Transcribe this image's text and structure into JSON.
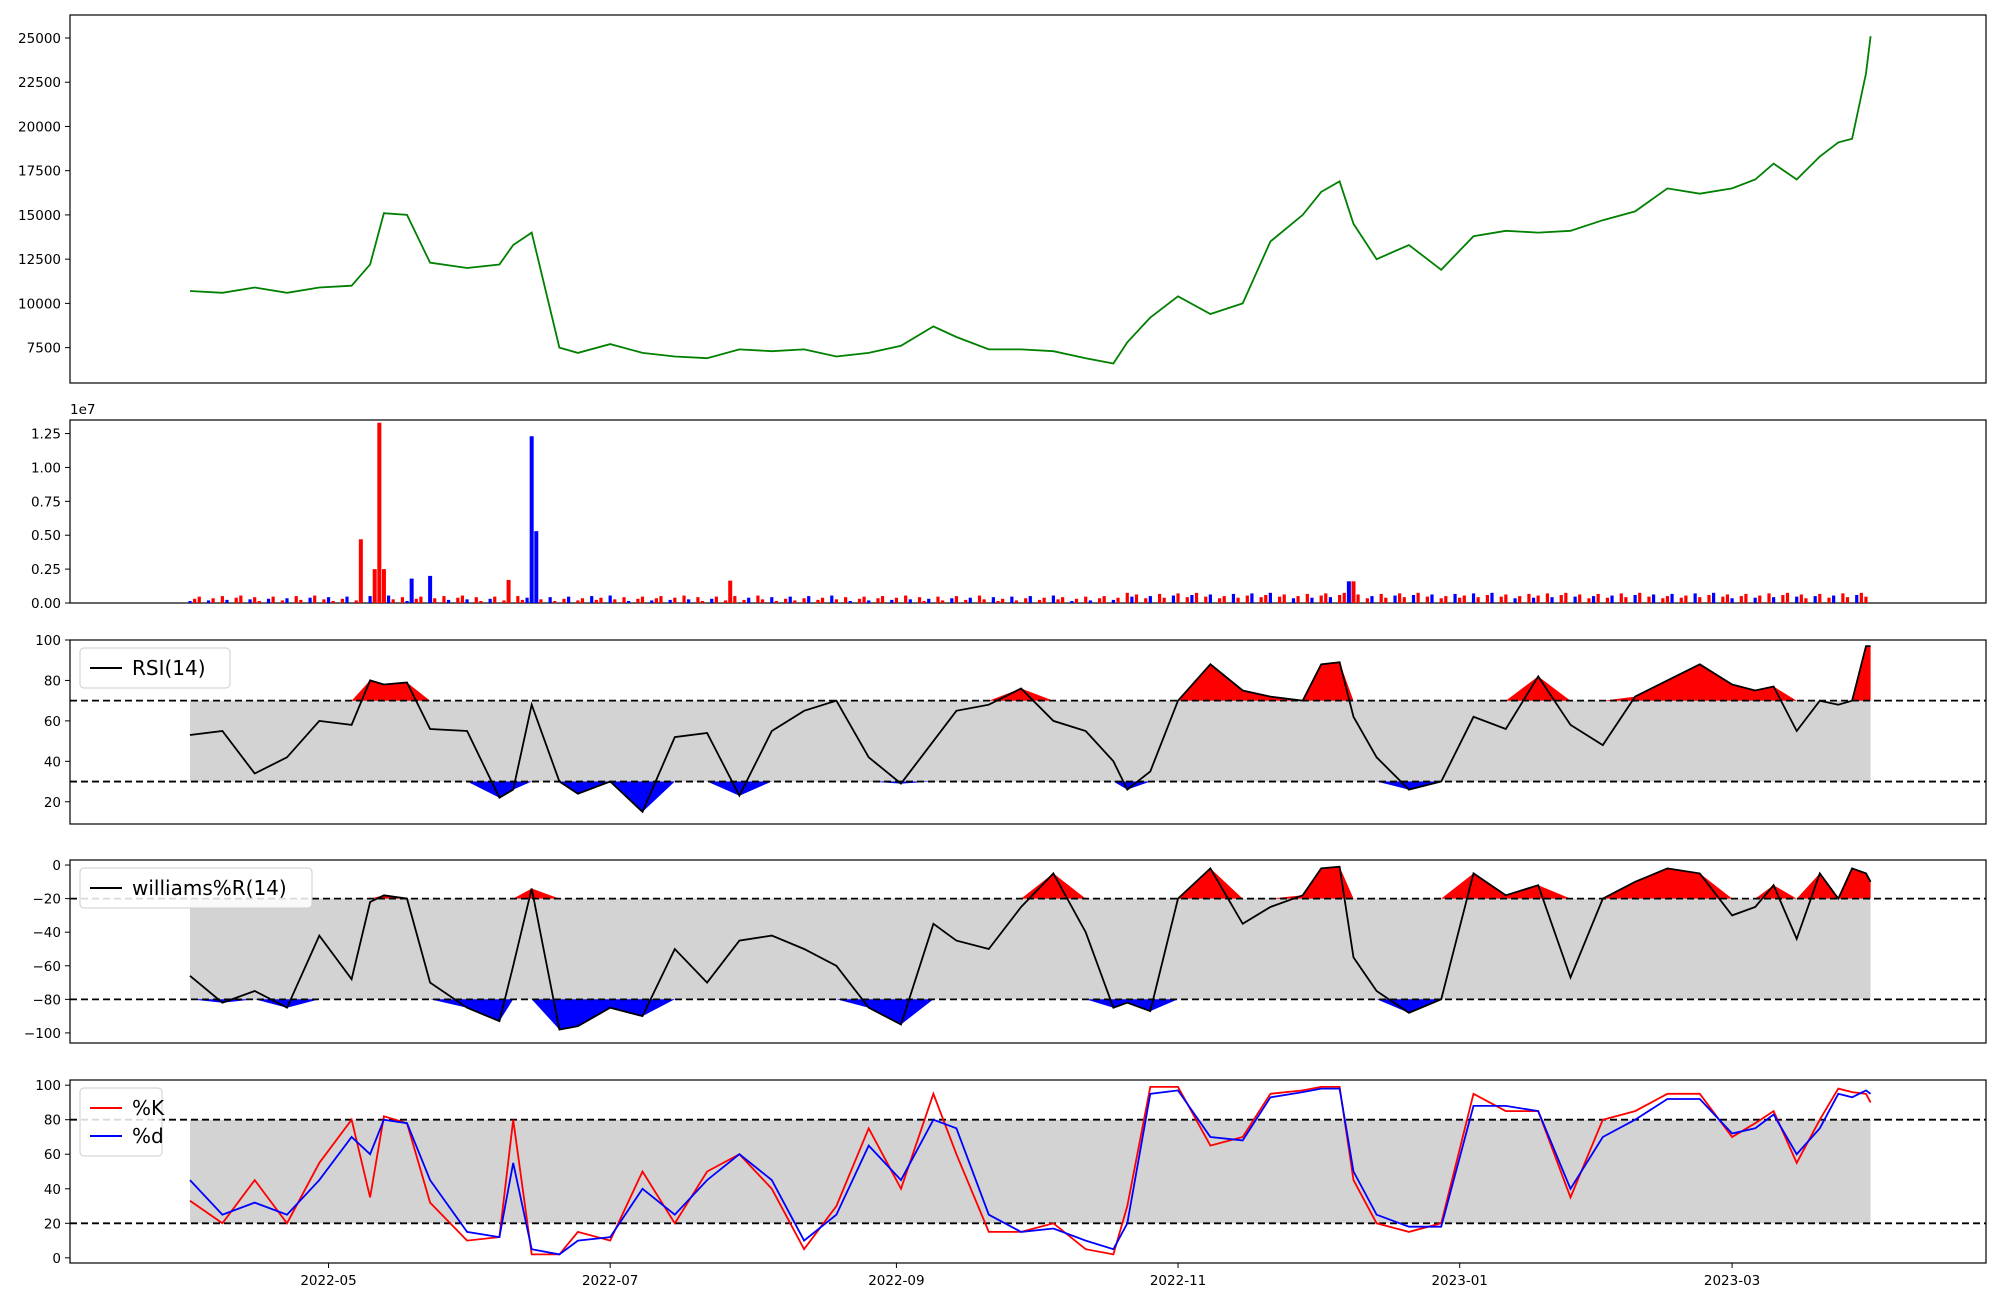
{
  "chart_data": [
    {
      "type": "line",
      "panel": "price",
      "color": "#008000",
      "ylim": [
        5500,
        26300
      ],
      "yticks": [
        "7500",
        "10000",
        "12500",
        "15000",
        "17500",
        "20000",
        "22500",
        "25000"
      ],
      "x": [
        "2022-04-01",
        "2022-04-08",
        "2022-04-15",
        "2022-04-22",
        "2022-04-29",
        "2022-05-06",
        "2022-05-10",
        "2022-05-13",
        "2022-05-18",
        "2022-05-23",
        "2022-05-31",
        "2022-06-07",
        "2022-06-10",
        "2022-06-14",
        "2022-06-20",
        "2022-06-24",
        "2022-07-01",
        "2022-07-08",
        "2022-07-15",
        "2022-07-22",
        "2022-07-29",
        "2022-08-05",
        "2022-08-12",
        "2022-08-19",
        "2022-08-26",
        "2022-09-02",
        "2022-09-09",
        "2022-09-14",
        "2022-09-21",
        "2022-09-28",
        "2022-10-05",
        "2022-10-12",
        "2022-10-18",
        "2022-10-21",
        "2022-10-26",
        "2022-11-01",
        "2022-11-08",
        "2022-11-15",
        "2022-11-21",
        "2022-11-28",
        "2022-12-02",
        "2022-12-06",
        "2022-12-09",
        "2022-12-14",
        "2022-12-21",
        "2022-12-28",
        "2023-01-04",
        "2023-01-11",
        "2023-01-18",
        "2023-01-25",
        "2023-02-01",
        "2023-02-08",
        "2023-02-15",
        "2023-02-22",
        "2023-03-01",
        "2023-03-06",
        "2023-03-10",
        "2023-03-15",
        "2023-03-20",
        "2023-03-24",
        "2023-03-27",
        "2023-03-30",
        "2023-03-31"
      ],
      "values": [
        10700,
        10600,
        10900,
        10600,
        10900,
        11000,
        12200,
        15100,
        15000,
        12300,
        12000,
        12200,
        13300,
        14000,
        7500,
        7200,
        7700,
        7200,
        7000,
        6900,
        7400,
        7300,
        7400,
        7000,
        7200,
        7600,
        8700,
        8100,
        7400,
        7400,
        7300,
        6900,
        6600,
        7800,
        9200,
        10400,
        9400,
        10000,
        13500,
        15000,
        16300,
        16900,
        14500,
        12500,
        13300,
        11900,
        13800,
        14100,
        14000,
        14100,
        14700,
        15200,
        16500,
        16200,
        16500,
        17000,
        17900,
        17000,
        18300,
        19100,
        19300,
        23000,
        25100
      ]
    },
    {
      "type": "bar",
      "panel": "volume",
      "offset_text": "1e7",
      "ylim": [
        0,
        13500000.0
      ],
      "yticks": [
        "0.00",
        "0.25",
        "0.50",
        "0.75",
        "1.00",
        "1.25"
      ],
      "up_color": "#ff0000",
      "down_color": "#0000ff",
      "spikes": [
        {
          "x": "2022-05-08",
          "value": 4700000,
          "color": "red"
        },
        {
          "x": "2022-05-11",
          "value": 2500000,
          "color": "red"
        },
        {
          "x": "2022-05-12",
          "value": 13300000,
          "color": "red"
        },
        {
          "x": "2022-05-13",
          "value": 2500000,
          "color": "red"
        },
        {
          "x": "2022-05-19",
          "value": 1800000,
          "color": "blue"
        },
        {
          "x": "2022-05-23",
          "value": 2000000,
          "color": "blue"
        },
        {
          "x": "2022-06-09",
          "value": 1700000,
          "color": "red"
        },
        {
          "x": "2022-06-14",
          "value": 12300000,
          "color": "blue"
        },
        {
          "x": "2022-06-15",
          "value": 5300000,
          "color": "blue"
        },
        {
          "x": "2022-07-27",
          "value": 1650000,
          "color": "red"
        },
        {
          "x": "2022-12-08",
          "value": 1600000,
          "color": "blue"
        },
        {
          "x": "2022-12-09",
          "value": 1600000,
          "color": "red"
        }
      ]
    },
    {
      "type": "line",
      "panel": "rsi",
      "legend": "RSI(14)",
      "ylim": [
        9,
        100
      ],
      "yticks": [
        "20",
        "40",
        "60",
        "80",
        "100"
      ],
      "upper": 70,
      "lower": 30,
      "fill_colors": {
        "band": "#d3d3d3",
        "over": "#ff0000",
        "under": "#0000ff"
      },
      "x": [
        "2022-04-01",
        "2022-04-08",
        "2022-04-15",
        "2022-04-22",
        "2022-04-29",
        "2022-05-06",
        "2022-05-10",
        "2022-05-13",
        "2022-05-18",
        "2022-05-23",
        "2022-05-31",
        "2022-06-07",
        "2022-06-10",
        "2022-06-14",
        "2022-06-20",
        "2022-06-24",
        "2022-07-01",
        "2022-07-08",
        "2022-07-15",
        "2022-07-22",
        "2022-07-29",
        "2022-08-05",
        "2022-08-12",
        "2022-08-19",
        "2022-08-26",
        "2022-09-02",
        "2022-09-09",
        "2022-09-14",
        "2022-09-21",
        "2022-09-28",
        "2022-10-05",
        "2022-10-12",
        "2022-10-18",
        "2022-10-21",
        "2022-10-26",
        "2022-11-01",
        "2022-11-08",
        "2022-11-15",
        "2022-11-21",
        "2022-11-28",
        "2022-12-02",
        "2022-12-06",
        "2022-12-09",
        "2022-12-14",
        "2022-12-21",
        "2022-12-28",
        "2023-01-04",
        "2023-01-11",
        "2023-01-18",
        "2023-01-25",
        "2023-02-01",
        "2023-02-08",
        "2023-02-15",
        "2023-02-22",
        "2023-03-01",
        "2023-03-06",
        "2023-03-10",
        "2023-03-15",
        "2023-03-20",
        "2023-03-24",
        "2023-03-27",
        "2023-03-30",
        "2023-03-31"
      ],
      "values": [
        53,
        55,
        34,
        42,
        60,
        58,
        80,
        78,
        79,
        56,
        55,
        22,
        26,
        68,
        30,
        24,
        30,
        15,
        52,
        54,
        23,
        55,
        65,
        70,
        42,
        29,
        50,
        65,
        68,
        76,
        60,
        55,
        40,
        26,
        35,
        70,
        88,
        75,
        72,
        70,
        88,
        89,
        62,
        42,
        26,
        30,
        62,
        56,
        82,
        58,
        48,
        72,
        80,
        88,
        78,
        75,
        77,
        55,
        70,
        68,
        70,
        97,
        97
      ]
    },
    {
      "type": "line",
      "panel": "williams",
      "legend": "williams%R(14)",
      "ylim": [
        -106,
        3
      ],
      "yticks": [
        "0",
        "−20",
        "−40",
        "−60",
        "−80",
        "−100"
      ],
      "upper": -20,
      "lower": -80,
      "x": [
        "2022-04-01",
        "2022-04-08",
        "2022-04-15",
        "2022-04-22",
        "2022-04-29",
        "2022-05-06",
        "2022-05-10",
        "2022-05-13",
        "2022-05-18",
        "2022-05-23",
        "2022-05-31",
        "2022-06-07",
        "2022-06-10",
        "2022-06-14",
        "2022-06-20",
        "2022-06-24",
        "2022-07-01",
        "2022-07-08",
        "2022-07-15",
        "2022-07-22",
        "2022-07-29",
        "2022-08-05",
        "2022-08-12",
        "2022-08-19",
        "2022-08-26",
        "2022-09-02",
        "2022-09-09",
        "2022-09-14",
        "2022-09-21",
        "2022-09-28",
        "2022-10-05",
        "2022-10-12",
        "2022-10-18",
        "2022-10-21",
        "2022-10-26",
        "2022-11-01",
        "2022-11-08",
        "2022-11-15",
        "2022-11-21",
        "2022-11-28",
        "2022-12-02",
        "2022-12-06",
        "2022-12-09",
        "2022-12-14",
        "2022-12-21",
        "2022-12-28",
        "2023-01-04",
        "2023-01-11",
        "2023-01-18",
        "2023-01-25",
        "2023-02-01",
        "2023-02-08",
        "2023-02-15",
        "2023-02-22",
        "2023-03-01",
        "2023-03-06",
        "2023-03-10",
        "2023-03-15",
        "2023-03-20",
        "2023-03-24",
        "2023-03-27",
        "2023-03-30",
        "2023-03-31"
      ],
      "values": [
        -66,
        -82,
        -75,
        -85,
        -42,
        -68,
        -22,
        -18,
        -20,
        -70,
        -85,
        -93,
        -60,
        -14,
        -98,
        -96,
        -85,
        -90,
        -50,
        -70,
        -45,
        -42,
        -50,
        -60,
        -85,
        -95,
        -35,
        -45,
        -50,
        -25,
        -5,
        -40,
        -85,
        -82,
        -87,
        -20,
        -2,
        -35,
        -25,
        -18,
        -2,
        -1,
        -55,
        -75,
        -88,
        -80,
        -5,
        -18,
        -12,
        -67,
        -20,
        -10,
        -2,
        -5,
        -30,
        -25,
        -12,
        -44,
        -5,
        -20,
        -2,
        -5,
        -10
      ]
    },
    {
      "type": "line",
      "panel": "stochastic",
      "ylim": [
        -3,
        103
      ],
      "yticks": [
        "0",
        "20",
        "40",
        "60",
        "80",
        "100"
      ],
      "upper": 80,
      "lower": 20,
      "x": [
        "2022-04-01",
        "2022-04-08",
        "2022-04-15",
        "2022-04-22",
        "2022-04-29",
        "2022-05-06",
        "2022-05-10",
        "2022-05-13",
        "2022-05-18",
        "2022-05-23",
        "2022-05-31",
        "2022-06-07",
        "2022-06-10",
        "2022-06-14",
        "2022-06-20",
        "2022-06-24",
        "2022-07-01",
        "2022-07-08",
        "2022-07-15",
        "2022-07-22",
        "2022-07-29",
        "2022-08-05",
        "2022-08-12",
        "2022-08-19",
        "2022-08-26",
        "2022-09-02",
        "2022-09-09",
        "2022-09-14",
        "2022-09-21",
        "2022-09-28",
        "2022-10-05",
        "2022-10-12",
        "2022-10-18",
        "2022-10-21",
        "2022-10-26",
        "2022-11-01",
        "2022-11-08",
        "2022-11-15",
        "2022-11-21",
        "2022-11-28",
        "2022-12-02",
        "2022-12-06",
        "2022-12-09",
        "2022-12-14",
        "2022-12-21",
        "2022-12-28",
        "2023-01-04",
        "2023-01-11",
        "2023-01-18",
        "2023-01-25",
        "2023-02-01",
        "2023-02-08",
        "2023-02-15",
        "2023-02-22",
        "2023-03-01",
        "2023-03-06",
        "2023-03-10",
        "2023-03-15",
        "2023-03-20",
        "2023-03-24",
        "2023-03-27",
        "2023-03-30",
        "2023-03-31"
      ],
      "series": [
        {
          "name": "%K",
          "color": "#ff0000",
          "values": [
            33,
            20,
            45,
            20,
            55,
            80,
            35,
            82,
            78,
            32,
            10,
            12,
            80,
            2,
            2,
            15,
            10,
            50,
            20,
            50,
            60,
            40,
            5,
            30,
            75,
            40,
            95,
            60,
            15,
            15,
            20,
            5,
            2,
            30,
            99,
            99,
            65,
            70,
            95,
            97,
            99,
            99,
            45,
            20,
            15,
            20,
            95,
            85,
            85,
            35,
            80,
            85,
            95,
            95,
            70,
            78,
            85,
            55,
            80,
            98,
            96,
            95,
            90
          ],
          "points": []
        },
        {
          "name": "%d",
          "color": "#0000ff",
          "values": [
            45,
            25,
            32,
            25,
            45,
            70,
            60,
            80,
            78,
            45,
            15,
            12,
            55,
            5,
            2,
            10,
            12,
            40,
            25,
            45,
            60,
            45,
            10,
            25,
            65,
            45,
            80,
            75,
            25,
            15,
            17,
            10,
            5,
            20,
            95,
            97,
            70,
            68,
            93,
            96,
            98,
            98,
            50,
            25,
            18,
            18,
            88,
            88,
            85,
            40,
            70,
            80,
            92,
            92,
            72,
            75,
            83,
            60,
            75,
            95,
            93,
            97,
            95
          ]
        }
      ]
    }
  ],
  "x_axis": {
    "ticks": [
      {
        "label": "2022-05",
        "date": "2022-05-01"
      },
      {
        "label": "2022-07",
        "date": "2022-07-01"
      },
      {
        "label": "2022-09",
        "date": "2022-09-01"
      },
      {
        "label": "2022-11",
        "date": "2022-11-01"
      },
      {
        "label": "2023-01",
        "date": "2023-01-01"
      },
      {
        "label": "2023-03",
        "date": "2023-03-01"
      }
    ],
    "xlim": [
      "2022-03-06",
      "2023-04-25"
    ]
  }
}
